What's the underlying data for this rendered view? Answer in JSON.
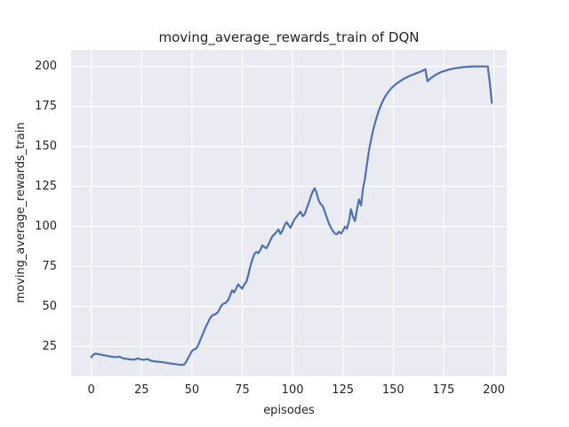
{
  "chart_data": {
    "type": "line",
    "title": "moving_average_rewards_train of DQN",
    "xlabel": "episodes",
    "ylabel": "moving_average_rewards_train",
    "legend": false,
    "grid": true,
    "x_start": 0,
    "x_step": 1,
    "xticks": [
      0,
      25,
      50,
      75,
      100,
      125,
      150,
      175,
      200
    ],
    "yticks": [
      25,
      50,
      75,
      100,
      125,
      150,
      175,
      200
    ],
    "xlim": [
      -10,
      206.4
    ],
    "ylim": [
      6.4,
      210.4
    ],
    "series": [
      {
        "name": "moving_average_rewards_train",
        "values": [
          18.3,
          19.8,
          20.6,
          20.4,
          20.1,
          19.9,
          19.6,
          19.4,
          19.1,
          18.9,
          18.7,
          18.5,
          18.3,
          18.5,
          18.7,
          18.0,
          17.6,
          17.4,
          17.2,
          17.0,
          16.9,
          16.8,
          17.1,
          17.6,
          17.2,
          16.9,
          16.7,
          16.9,
          17.2,
          16.5,
          16.0,
          15.8,
          15.6,
          15.5,
          15.4,
          15.3,
          15.1,
          14.9,
          14.7,
          14.5,
          14.3,
          14.1,
          14.0,
          13.8,
          13.6,
          13.5,
          13.7,
          15.2,
          17.6,
          19.8,
          22.2,
          23.2,
          23.6,
          25.6,
          28.6,
          31.5,
          34.6,
          37.6,
          40.1,
          42.6,
          44.3,
          44.9,
          45.4,
          46.6,
          49.1,
          51.1,
          51.9,
          52.4,
          54.1,
          57.0,
          60.1,
          58.8,
          61.3,
          63.9,
          62.4,
          61.2,
          63.8,
          65.2,
          69.7,
          74.9,
          79.3,
          82.8,
          84.1,
          83.4,
          85.3,
          88.2,
          87.1,
          86.4,
          88.7,
          91.5,
          93.9,
          95.1,
          96.6,
          98.2,
          95.4,
          97.6,
          100.6,
          102.8,
          100.9,
          99.2,
          102.1,
          104.6,
          106.1,
          107.9,
          109.3,
          106.4,
          107.7,
          111.2,
          114.7,
          118.6,
          121.8,
          123.9,
          120.8,
          116.2,
          113.9,
          112.8,
          109.3,
          105.6,
          102.1,
          99.4,
          97.2,
          95.6,
          95.1,
          96.8,
          95.6,
          97.3,
          99.9,
          98.6,
          103.1,
          110.8,
          106.2,
          103.4,
          110.7,
          116.9,
          113.2,
          123.8,
          130.2,
          139.6,
          147.8,
          154.3,
          160.1,
          164.9,
          169.2,
          172.9,
          176.1,
          178.8,
          181.2,
          183.1,
          184.8,
          186.2,
          187.5,
          188.6,
          189.6,
          190.5,
          191.3,
          192.1,
          192.8,
          193.4,
          194.0,
          194.5,
          195.0,
          195.5,
          196.0,
          196.5,
          197.0,
          197.6,
          198.3,
          190.8,
          191.9,
          193.0,
          193.9,
          194.7,
          195.4,
          196.0,
          196.6,
          197.0,
          197.4,
          197.8,
          198.1,
          198.4,
          198.7,
          198.9,
          199.1,
          199.3,
          199.5,
          199.6,
          199.7,
          199.8,
          199.9,
          199.9,
          200.0,
          200.0,
          200.0,
          200.0,
          200.0,
          200.0,
          200.0,
          199.9,
          189.5,
          177.3
        ]
      }
    ],
    "style": {
      "line_color": "#4C72B0",
      "plot_bg": "#EAEAF2",
      "grid_color": "#FFFFFF",
      "text_color": "#262626",
      "fig_bg": "#FFFFFF",
      "line_width": 2.2,
      "grid_width": 1.1
    }
  }
}
